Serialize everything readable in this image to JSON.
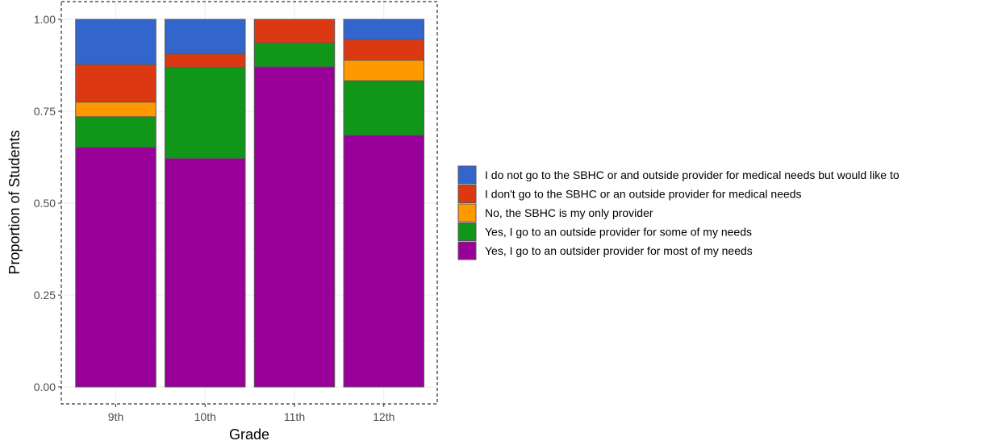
{
  "chart_data": {
    "type": "bar",
    "stacked": true,
    "xlabel": "Grade",
    "ylabel": "Proportion of Students",
    "ylim": [
      0,
      1
    ],
    "yticks": [
      "0.00",
      "0.25",
      "0.50",
      "0.75",
      "1.00"
    ],
    "categories": [
      "9th",
      "10th",
      "11th",
      "12th"
    ],
    "grid": true,
    "legend_position": "right",
    "series": [
      {
        "name": "Yes, I go to an outsider provider for most of my needs",
        "color": "#990099",
        "values": [
          0.652,
          0.622,
          0.871,
          0.685
        ]
      },
      {
        "name": "Yes, I go to an outside provider for some of my needs",
        "color": "#109618",
        "values": [
          0.083,
          0.248,
          0.065,
          0.148
        ]
      },
      {
        "name": "No, the SBHC is my only provider",
        "color": "#ff9900",
        "values": [
          0.04,
          0.0,
          0.0,
          0.056
        ]
      },
      {
        "name": "I don't go to the SBHC or an outside provider for medical needs",
        "color": "#dc3912",
        "values": [
          0.102,
          0.036,
          0.064,
          0.056
        ]
      },
      {
        "name": "I do not go to the SBHC or and outside provider for medical needs but would like to",
        "color": "#3366cc",
        "values": [
          0.123,
          0.094,
          0.0,
          0.055
        ]
      }
    ],
    "legend_order": [
      "I do not go to the SBHC or and outside provider for medical needs but would like to",
      "I don't go to the SBHC or an outside provider for medical needs",
      "No, the SBHC is my only provider",
      "Yes, I go to an outside provider for some of my needs",
      "Yes, I go to an outsider provider for most of my needs"
    ]
  }
}
